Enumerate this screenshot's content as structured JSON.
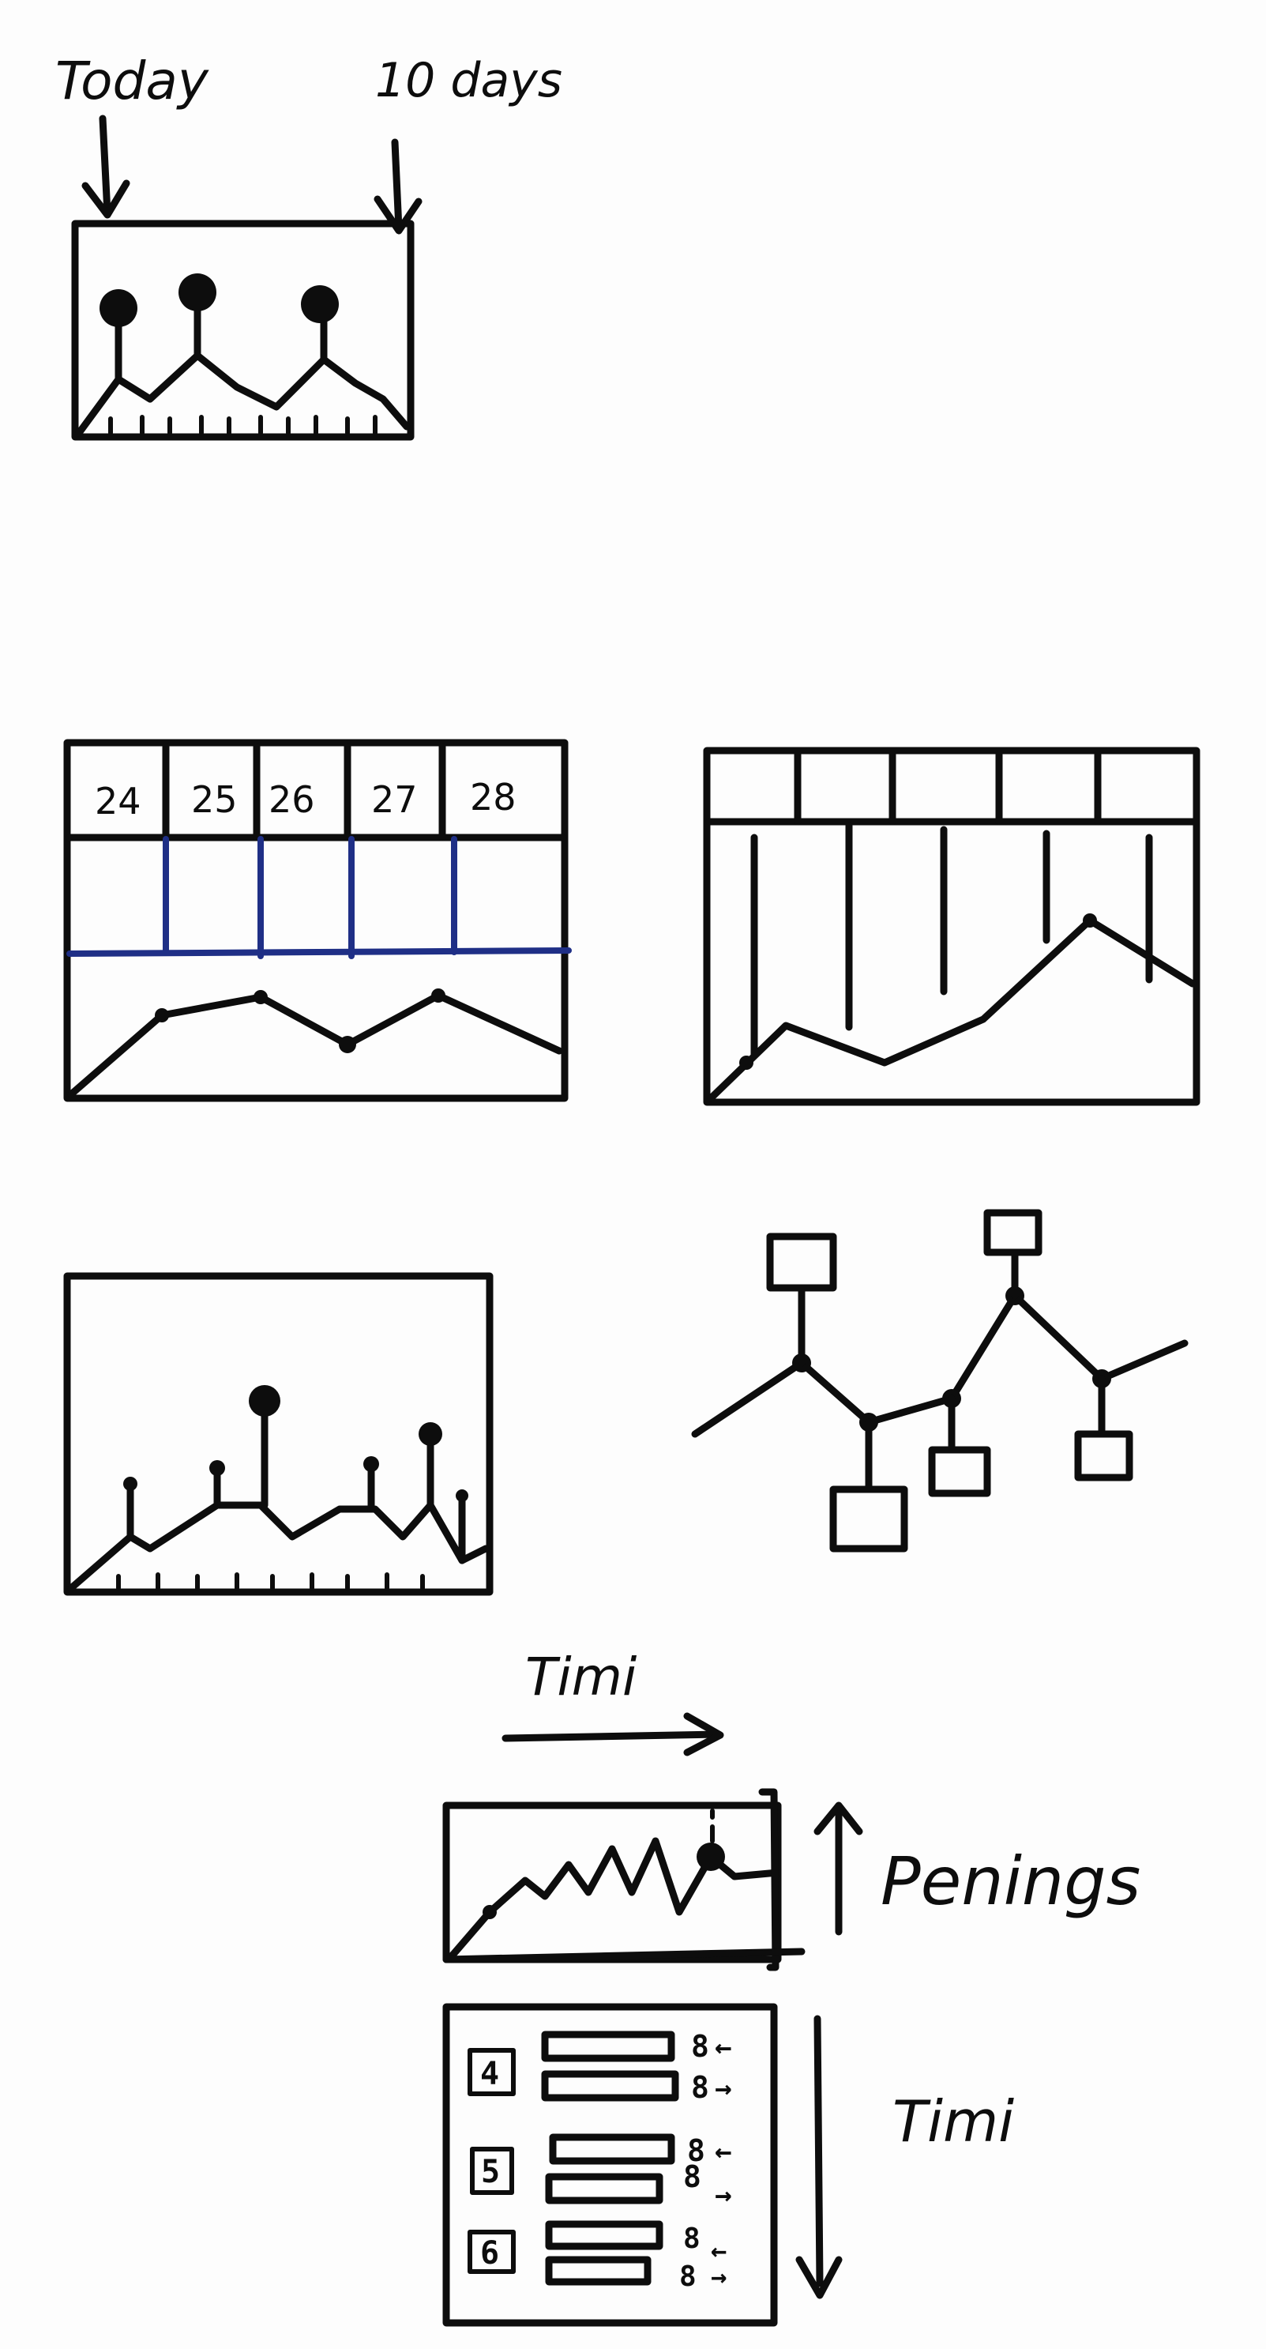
{
  "annotations": {
    "today": "Today",
    "ten_days": "10 days",
    "time_top": "Timi",
    "penings": "Penings",
    "time_side": "Timi"
  },
  "calendar": {
    "days": [
      "24",
      "25",
      "26",
      "27",
      "28"
    ]
  },
  "list": {
    "items": [
      {
        "number": "4",
        "count_in": "8",
        "count_out": "8"
      },
      {
        "number": "5",
        "count_in": "8",
        "count_out": "8"
      },
      {
        "number": "6",
        "count_in": "8",
        "count_out": "8"
      }
    ],
    "in_arrow": "←",
    "out_arrow": "→"
  },
  "ink_color": "#0d0d0d",
  "accent_color": "#1f2f86"
}
